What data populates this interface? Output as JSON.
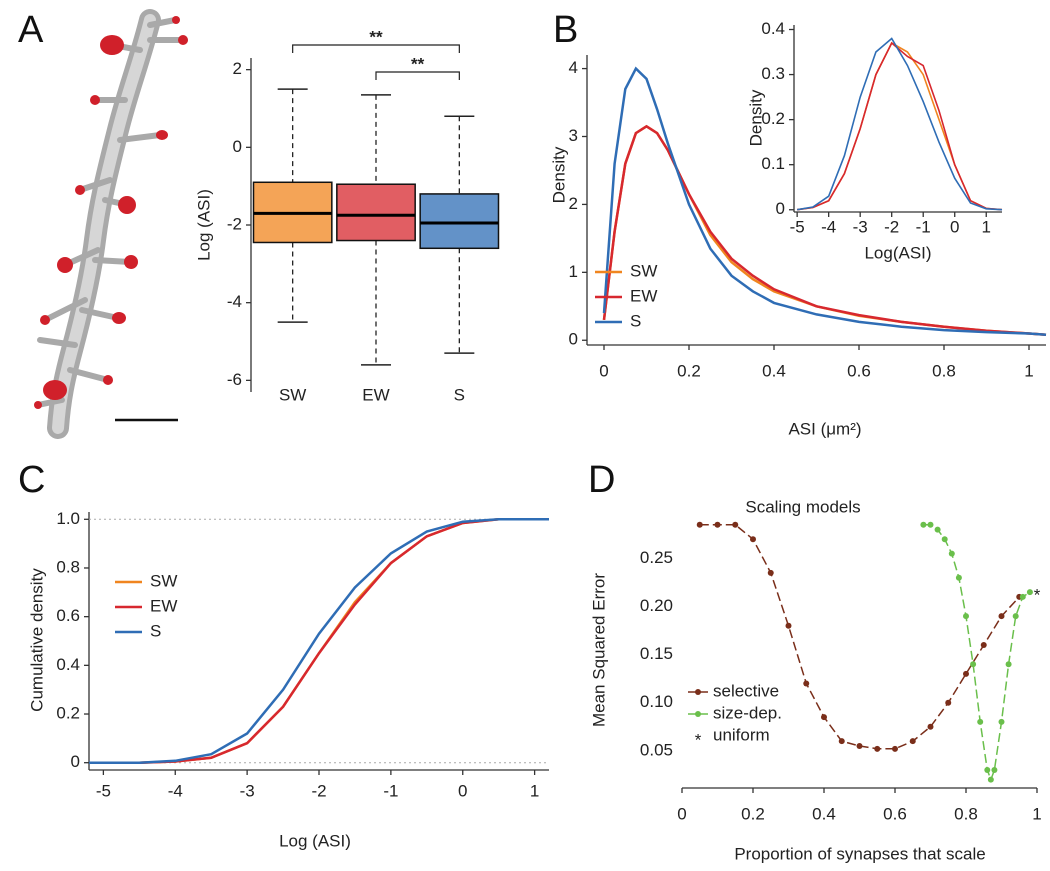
{
  "chart_data": [
    {
      "type": "box",
      "panel_label": "A",
      "y_label": "Log (ASI)",
      "categories": [
        "SW",
        "EW",
        "S"
      ],
      "colors": [
        "#f0851f",
        "#d7282f",
        "#2f6db5"
      ],
      "boxes": [
        {
          "low": -4.5,
          "q1": -2.45,
          "median": -1.7,
          "q3": -0.9,
          "high": 1.5
        },
        {
          "low": -5.6,
          "q1": -2.4,
          "median": -1.75,
          "q3": -0.95,
          "high": 1.35
        },
        {
          "low": -5.3,
          "q1": -2.6,
          "median": -1.95,
          "q3": -1.2,
          "high": 0.8
        }
      ],
      "ylim": [
        -6.3,
        2.3
      ],
      "yticks": [
        -6,
        -4,
        -2,
        0,
        2
      ],
      "annotations": [
        "**",
        "**"
      ]
    },
    {
      "type": "line",
      "panel_label": "B",
      "x_label": "ASI (μm²)",
      "y_label": "Density",
      "x": [
        0,
        0.025,
        0.05,
        0.075,
        0.1,
        0.125,
        0.15,
        0.2,
        0.25,
        0.3,
        0.35,
        0.4,
        0.5,
        0.6,
        0.7,
        0.8,
        0.9,
        1.0,
        1.04
      ],
      "series": [
        {
          "name": "SW",
          "color": "#f0851f",
          "values": [
            0.3,
            1.6,
            2.6,
            3.05,
            3.15,
            3.05,
            2.8,
            2.15,
            1.55,
            1.15,
            0.9,
            0.72,
            0.5,
            0.36,
            0.27,
            0.2,
            0.14,
            0.1,
            0.08
          ]
        },
        {
          "name": "EW",
          "color": "#d7282f",
          "values": [
            0.3,
            1.6,
            2.6,
            3.05,
            3.15,
            3.05,
            2.8,
            2.15,
            1.6,
            1.2,
            0.95,
            0.75,
            0.5,
            0.37,
            0.27,
            0.2,
            0.14,
            0.1,
            0.08
          ]
        },
        {
          "name": "S",
          "color": "#2f6db5",
          "values": [
            0.4,
            2.6,
            3.7,
            4.0,
            3.85,
            3.4,
            2.9,
            2.0,
            1.35,
            0.95,
            0.72,
            0.55,
            0.38,
            0.27,
            0.2,
            0.15,
            0.12,
            0.1,
            0.08
          ]
        }
      ],
      "xlim": [
        -0.04,
        1.04
      ],
      "xticks": [
        0,
        0.2,
        0.4,
        0.6,
        0.8,
        1
      ],
      "ylim": [
        -0.07,
        4.2
      ],
      "yticks": [
        0,
        1,
        2,
        3,
        4
      ],
      "legend": "lower left"
    },
    {
      "type": "line",
      "x_label": "Log(ASI)",
      "y_label": "Density",
      "x": [
        -5,
        -4.5,
        -4,
        -3.5,
        -3,
        -2.5,
        -2,
        -1.5,
        -1,
        -0.5,
        0,
        0.5,
        1,
        1.5
      ],
      "series": [
        {
          "name": "SW",
          "color": "#f0851f",
          "values": [
            0,
            0.005,
            0.02,
            0.08,
            0.18,
            0.3,
            0.37,
            0.35,
            0.3,
            0.2,
            0.1,
            0.02,
            0.003,
            0
          ]
        },
        {
          "name": "EW",
          "color": "#d7282f",
          "values": [
            0,
            0.005,
            0.02,
            0.08,
            0.18,
            0.3,
            0.37,
            0.34,
            0.32,
            0.22,
            0.1,
            0.02,
            0.003,
            0
          ]
        },
        {
          "name": "S",
          "color": "#2f6db5",
          "values": [
            0,
            0.006,
            0.03,
            0.12,
            0.25,
            0.35,
            0.38,
            0.32,
            0.24,
            0.15,
            0.07,
            0.015,
            0.002,
            0
          ]
        }
      ],
      "xlim": [
        -5.1,
        1.5
      ],
      "xticks": [
        -5,
        -4,
        -3,
        -2,
        -1,
        0,
        1
      ],
      "ylim": [
        -0.005,
        0.41
      ],
      "yticks": [
        0,
        0.1,
        0.2,
        0.3,
        0.4
      ]
    },
    {
      "type": "line",
      "panel_label": "C",
      "x_label": "Log (ASI)",
      "y_label": "Cumulative density",
      "x": [
        -5.2,
        -4.5,
        -4,
        -3.5,
        -3,
        -2.5,
        -2,
        -1.5,
        -1,
        -0.5,
        0,
        0.5,
        1,
        1.2
      ],
      "series": [
        {
          "name": "SW",
          "color": "#f0851f",
          "values": [
            0,
            0,
            0.005,
            0.02,
            0.08,
            0.23,
            0.45,
            0.66,
            0.82,
            0.93,
            0.985,
            1,
            1,
            1
          ]
        },
        {
          "name": "EW",
          "color": "#d7282f",
          "values": [
            0,
            0,
            0.005,
            0.02,
            0.08,
            0.23,
            0.45,
            0.65,
            0.82,
            0.93,
            0.985,
            1,
            1,
            1
          ]
        },
        {
          "name": "S",
          "color": "#2f6db5",
          "values": [
            0,
            0,
            0.008,
            0.035,
            0.12,
            0.3,
            0.53,
            0.72,
            0.86,
            0.95,
            0.99,
            1,
            1,
            1
          ]
        }
      ],
      "xlim": [
        -5.2,
        1.2
      ],
      "xticks": [
        -5,
        -4,
        -3,
        -2,
        -1,
        0,
        1
      ],
      "ylim": [
        -0.03,
        1.03
      ],
      "yticks": [
        0,
        0.2,
        0.4,
        0.6,
        0.8,
        {
          "value": 1,
          "label": "1.0"
        }
      ],
      "legend": "upper left"
    },
    {
      "type": "line",
      "panel_label": "D",
      "title": "Scaling models",
      "x_label": "Proportion of synapses that scale",
      "y_label": "Mean Squared Error",
      "series": [
        {
          "name": "selective",
          "color": "#7a2e1a",
          "x": [
            0.05,
            0.1,
            0.15,
            0.2,
            0.25,
            0.3,
            0.35,
            0.4,
            0.45,
            0.5,
            0.55,
            0.6,
            0.65,
            0.7,
            0.75,
            0.8,
            0.85,
            0.9,
            0.95
          ],
          "values": [
            0.285,
            0.285,
            0.285,
            0.27,
            0.235,
            0.18,
            0.12,
            0.085,
            0.06,
            0.055,
            0.052,
            0.052,
            0.06,
            0.075,
            0.1,
            0.13,
            0.16,
            0.19,
            0.21
          ]
        },
        {
          "name": "size-dep.",
          "color": "#6abf4b",
          "x": [
            0.68,
            0.7,
            0.72,
            0.74,
            0.76,
            0.78,
            0.8,
            0.82,
            0.84,
            0.86,
            0.87,
            0.88,
            0.9,
            0.92,
            0.94,
            0.96,
            0.98
          ],
          "values": [
            0.285,
            0.285,
            0.28,
            0.27,
            0.255,
            0.23,
            0.19,
            0.14,
            0.08,
            0.03,
            0.02,
            0.03,
            0.08,
            0.14,
            0.19,
            0.21,
            0.215
          ]
        },
        {
          "name": "uniform",
          "color": "#111111",
          "marker": "*",
          "x": [
            1
          ],
          "values": [
            0.215
          ]
        }
      ],
      "xlim": [
        0,
        1
      ],
      "xticks": [
        0,
        0.2,
        0.4,
        0.6,
        0.8,
        1
      ],
      "ylim": [
        0.03,
        0.29
      ],
      "yticks": [
        0.05,
        {
          "value": 0.1,
          "label": "0.10"
        },
        0.15,
        {
          "value": 0.2,
          "label": "0.20"
        },
        0.25
      ],
      "legend": "lower left"
    }
  ]
}
